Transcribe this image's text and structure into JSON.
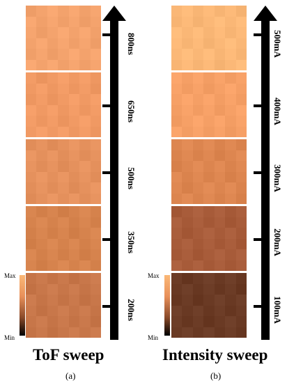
{
  "panels": [
    {
      "title": "ToF sweep",
      "caption": "(a)",
      "colorbar": {
        "max_label": "Max",
        "min_label": "Min"
      },
      "levels": [
        "800ns",
        "650ns",
        "500ns",
        "350ns",
        "200ns"
      ],
      "tile_colors": [
        "#f4a36d",
        "#f19a64",
        "#e5915d",
        "#d6834d",
        "#c8774a"
      ]
    },
    {
      "title": "Intensity sweep",
      "caption": "(b)",
      "colorbar": {
        "max_label": "Max",
        "min_label": "Min"
      },
      "levels": [
        "500mA",
        "400mA",
        "300mA",
        "200mA",
        "100mA"
      ],
      "tile_colors": [
        "#fbb877",
        "#f6a066",
        "#dd8650",
        "#a85c3a",
        "#6a3a24"
      ]
    }
  ],
  "colors": {
    "colorbar_top": "#fbb877",
    "colorbar_bottom": "#000000",
    "axis": "#000000"
  }
}
